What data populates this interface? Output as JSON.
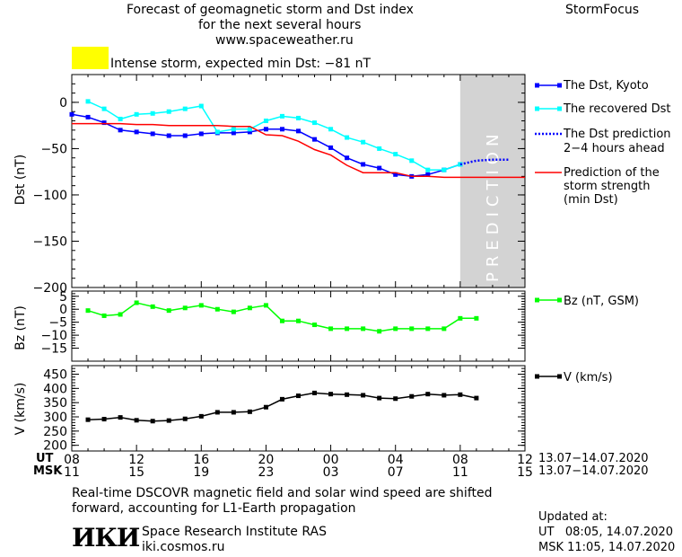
{
  "header": {
    "title_line1": "Forecast of geomagnetic storm and Dst index",
    "title_line2": "for the next several hours",
    "title_line3": "www.spaceweather.ru",
    "brand": "StormFocus",
    "alert_text": "Intense storm, expected min Dst: −81 nT",
    "alert_color": "#ffff00"
  },
  "legend": {
    "dst_kyoto": "The Dst, Kyoto",
    "dst_recovered": "The recovered Dst",
    "dst_prediction_1": "The Dst prediction",
    "dst_prediction_2": "2−4 hours ahead",
    "strength_1": "Prediction of the",
    "strength_2": "storm strength",
    "strength_3": "(min Dst)",
    "bz": "Bz (nT, GSM)",
    "v": "V (km/s)"
  },
  "time_axis": {
    "ut_label": "UT",
    "msk_label": "MSK",
    "date_range": "13.07−14.07.2020"
  },
  "footer": {
    "note_line1": "Real-time DSCOVR magnetic field and solar wind speed are shifted",
    "note_line2": "forward, accounting for L1-Earth propagation",
    "logo_text": "ИКИ",
    "institute": "Space Research Institute RAS",
    "site": "iki.cosmos.ru",
    "updated_label": "Updated at:",
    "updated_ut": "UT   08:05, 14.07.2020",
    "updated_msk": "MSK 11:05, 14.07.2020"
  },
  "chart_data": [
    {
      "type": "line",
      "x_unit": "hours from 08 UT",
      "xlim": [
        0,
        28
      ],
      "ylim": [
        -200,
        30
      ],
      "ylabel": "Dst (nT)",
      "yticks": [
        0,
        -50,
        -100,
        -150,
        -200
      ],
      "prediction_band": {
        "from": 24,
        "to": 28,
        "label": "PREDICTION",
        "color": "#d3d3d3"
      },
      "series": [
        {
          "name": "The Dst, Kyoto",
          "color": "#0000ff",
          "marker": "square",
          "x": [
            0,
            1,
            2,
            3,
            4,
            5,
            6,
            7,
            8,
            9,
            10,
            11,
            12,
            13,
            14,
            15,
            16,
            17,
            18,
            19,
            20,
            21,
            22,
            23,
            24
          ],
          "values": [
            -13,
            -16,
            -22,
            -30,
            -32,
            -34,
            -36,
            -36,
            -34,
            -33,
            -33,
            -32,
            -29,
            -29,
            -31,
            -40,
            -49,
            -60,
            -67,
            -71,
            -78,
            -80,
            -78,
            -73,
            -67
          ]
        },
        {
          "name": "The recovered Dst",
          "color": "#00ffff",
          "marker": "square",
          "x": [
            1,
            2,
            3,
            4,
            5,
            6,
            7,
            8,
            9,
            10,
            11,
            12,
            13,
            14,
            15,
            16,
            17,
            18,
            19,
            20,
            21,
            22,
            23,
            24
          ],
          "values": [
            1,
            -7,
            -18,
            -13,
            -12,
            -10,
            -7,
            -4,
            -32,
            -29,
            -29,
            -20,
            -15,
            -17,
            -22,
            -29,
            -38,
            -43,
            -50,
            -56,
            -63,
            -73,
            -73,
            -67
          ]
        },
        {
          "name": "The Dst prediction 2−4 hours ahead",
          "color": "#0000ff",
          "style": "dotted",
          "x": [
            24,
            25,
            26,
            27
          ],
          "values": [
            -67,
            -63,
            -62,
            -62
          ]
        },
        {
          "name": "Prediction of the storm strength (min Dst)",
          "color": "#ff0000",
          "x": [
            0,
            1,
            2,
            3,
            4,
            5,
            6,
            7,
            8,
            9,
            10,
            11,
            12,
            13,
            14,
            15,
            16,
            17,
            18,
            19,
            20,
            21,
            22,
            23,
            24,
            25,
            26,
            27,
            28
          ],
          "values": [
            -23,
            -23,
            -23,
            -23,
            -24,
            -24,
            -25,
            -25,
            -25,
            -25,
            -26,
            -26,
            -35,
            -36,
            -42,
            -51,
            -57,
            -68,
            -76,
            -76,
            -76,
            -80,
            -80,
            -81,
            -81,
            -81,
            -81,
            -81,
            -81
          ]
        }
      ]
    },
    {
      "type": "line",
      "xlim": [
        0,
        28
      ],
      "ylim": [
        -20,
        7
      ],
      "ylabel": "Bz (nT)",
      "yticks": [
        5,
        0,
        -5,
        -10,
        -15
      ],
      "series": [
        {
          "name": "Bz (nT, GSM)",
          "color": "#00ff00",
          "marker": "square",
          "x": [
            1,
            2,
            3,
            4,
            5,
            6,
            7,
            8,
            9,
            10,
            11,
            12,
            13,
            14,
            15,
            16,
            17,
            18,
            19,
            20,
            21,
            22,
            23,
            24,
            25
          ],
          "values": [
            -0.5,
            -2.5,
            -2,
            2.5,
            1,
            -0.5,
            0.5,
            1.5,
            0,
            -1,
            0.5,
            1.5,
            -4.5,
            -4.5,
            -6,
            -7.5,
            -7.5,
            -7.5,
            -8.5,
            -7.5,
            -7.5,
            -7.5,
            -7.5,
            -3.5,
            -3.5
          ]
        }
      ]
    },
    {
      "type": "line",
      "xlim": [
        0,
        28
      ],
      "ylim": [
        180,
        480
      ],
      "ylabel": "V (km/s)",
      "yticks": [
        450,
        400,
        350,
        300,
        250,
        200
      ],
      "xticks_ut": [
        "08",
        "12",
        "16",
        "20",
        "00",
        "04",
        "08",
        "12"
      ],
      "xticks_msk": [
        "11",
        "15",
        "19",
        "23",
        "03",
        "07",
        "11",
        "15"
      ],
      "series": [
        {
          "name": "V (km/s)",
          "color": "#000000",
          "marker": "square",
          "x": [
            1,
            2,
            3,
            4,
            5,
            6,
            7,
            8,
            9,
            10,
            11,
            12,
            13,
            14,
            15,
            16,
            17,
            18,
            19,
            20,
            21,
            22,
            23,
            24,
            25
          ],
          "values": [
            290,
            292,
            298,
            288,
            285,
            287,
            293,
            302,
            316,
            316,
            318,
            334,
            362,
            374,
            384,
            380,
            378,
            376,
            366,
            364,
            372,
            380,
            376,
            378,
            366
          ]
        }
      ]
    }
  ]
}
